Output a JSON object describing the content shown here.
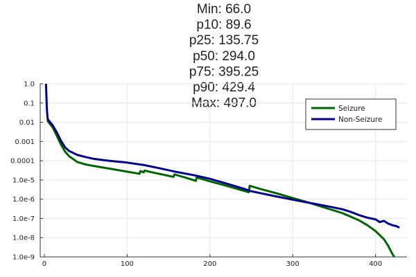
{
  "chart_data": {
    "type": "line",
    "title_lines": [
      "Min: 66.0",
      "p10: 89.6",
      "p25: 135.75",
      "p50: 294.0",
      "p75: 395.25",
      "p90: 429.4",
      "Max: 497.0"
    ],
    "xlabel": "",
    "ylabel": "",
    "x_scale": "linear",
    "y_scale": "log10",
    "xlim": [
      -5,
      438
    ],
    "ylim": [
      1e-09,
      1.0
    ],
    "x_ticks": [
      0,
      100,
      200,
      300,
      400
    ],
    "x_tick_labels": [
      "0",
      "100",
      "200",
      "300",
      "400"
    ],
    "y_ticks": [
      1e-09,
      1e-08,
      1e-07,
      1e-06,
      1e-05,
      0.0001,
      0.001,
      0.01,
      0.1,
      1.0
    ],
    "y_tick_labels": [
      "1.0e-9",
      "1.0e-8",
      "1.0e-7",
      "1.0e-6",
      "1.0e-5",
      "0.0001",
      "0.001",
      "0.01",
      "0.1",
      "1.0"
    ],
    "grid": true,
    "legend_position": "top-right",
    "series": [
      {
        "name": "Seizure",
        "color": "#006400",
        "x": [
          4,
          5,
          10,
          15,
          20,
          25,
          30,
          40,
          50,
          60,
          80,
          100,
          115,
          116,
          120,
          121,
          130,
          150,
          156,
          157,
          170,
          183,
          184,
          200,
          220,
          247,
          248,
          260,
          280,
          300,
          320,
          340,
          360,
          380,
          390,
          400,
          410,
          415,
          420,
          425,
          429
        ],
        "y": [
          0.012,
          0.01,
          0.0055,
          0.002,
          0.0007,
          0.0003,
          0.00017,
          8.5e-05,
          6.4e-05,
          5.3e-05,
          3.8e-05,
          2.7e-05,
          2.1e-05,
          2.9e-05,
          2.5e-05,
          3.1e-05,
          2.5e-05,
          1.65e-05,
          1.45e-05,
          1.95e-05,
          1.35e-05,
          9e-06,
          1.35e-05,
          8.5e-06,
          5e-06,
          2.3e-06,
          5e-06,
          3.5e-06,
          2.05e-06,
          1.15e-06,
          6.5e-07,
          3.5e-07,
          1.9e-07,
          8e-08,
          4.5e-08,
          2.2e-08,
          8.5e-09,
          4e-09,
          1.5e-09,
          7e-10,
          3e-10
        ]
      },
      {
        "name": "Non-Seizure",
        "color": "#00008b",
        "x": [
          2,
          3,
          4,
          5,
          10,
          15,
          20,
          25,
          30,
          40,
          50,
          60,
          70,
          80,
          100,
          120,
          140,
          160,
          180,
          200,
          220,
          240,
          250,
          260,
          280,
          300,
          320,
          340,
          360,
          370,
          380,
          390,
          400,
          405,
          410,
          415,
          420,
          425,
          428
        ],
        "y": [
          1.0,
          0.05,
          0.015,
          0.013,
          0.007,
          0.003,
          0.0011,
          0.0005,
          0.00032,
          0.0002,
          0.000155,
          0.000125,
          0.00011,
          9.8e-05,
          8e-05,
          6e-05,
          4e-05,
          2.6e-05,
          1.8e-05,
          1.15e-05,
          6.5e-06,
          3.6e-06,
          2.6e-06,
          2.1e-06,
          1.4e-06,
          9.5e-07,
          6.5e-07,
          4.5e-07,
          3e-07,
          2.2e-07,
          1.5e-07,
          1.1e-07,
          9e-08,
          6.5e-08,
          7.5e-08,
          5.5e-08,
          4.5e-08,
          4e-08,
          3.5e-08
        ]
      }
    ]
  }
}
